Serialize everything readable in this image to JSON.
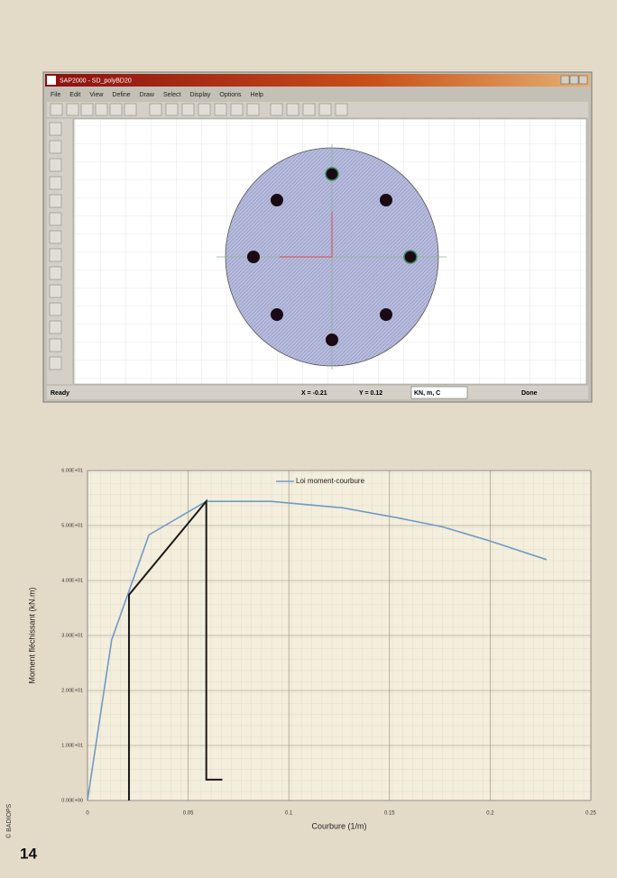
{
  "screenshot": {
    "window_title": "SAP2000 - SD_polyBD20",
    "menu": [
      "File",
      "Edit",
      "View",
      "Define",
      "Draw",
      "Select",
      "Display",
      "Options",
      "Help"
    ],
    "status": {
      "left": "Ready",
      "x": "X = -0.21",
      "y": "Y = 0.12",
      "units": "KN, m, C",
      "right": "Done"
    }
  },
  "chart_data": {
    "type": "line",
    "x_label": "Courbure (1/m)",
    "y_label": "Moment fléchissant (kN.m)",
    "legend": "top-center",
    "grid": true,
    "xlim": [
      0,
      0.25
    ],
    "ylim": [
      0,
      60
    ],
    "xticks": [
      0,
      0.05,
      0.1,
      0.15,
      0.2,
      0.25
    ],
    "yticks": [
      {
        "value": 0,
        "label": "0.00E+00"
      },
      {
        "value": 10,
        "label": "1.00E+01"
      },
      {
        "value": 20,
        "label": "2.00E+01"
      },
      {
        "value": 30,
        "label": "3.00E+01"
      },
      {
        "value": 40,
        "label": "4.00E+01"
      },
      {
        "value": 50,
        "label": "5.00E+01"
      },
      {
        "value": 60,
        "label": "6.00E+01"
      }
    ],
    "series": [
      {
        "name": "Loi moment-courbure",
        "color": "#6f9bc4",
        "x": [
          0,
          0.012,
          0.0305,
          0.059,
          0.091,
          0.127,
          0.154,
          0.176,
          0.199,
          0.228
        ],
        "values": [
          0,
          29.2,
          48.3,
          54.4,
          54.4,
          53.2,
          51.4,
          49.8,
          47.3,
          43.8
        ]
      },
      {
        "color": "#1a1a1a",
        "x": [
          0.0206,
          0.0206,
          0.059,
          0.059,
          0.067
        ],
        "values": [
          0,
          37.4,
          54.4,
          3.8,
          3.8
        ]
      }
    ]
  },
  "page_number": "14",
  "credit": "© BADIOPS"
}
